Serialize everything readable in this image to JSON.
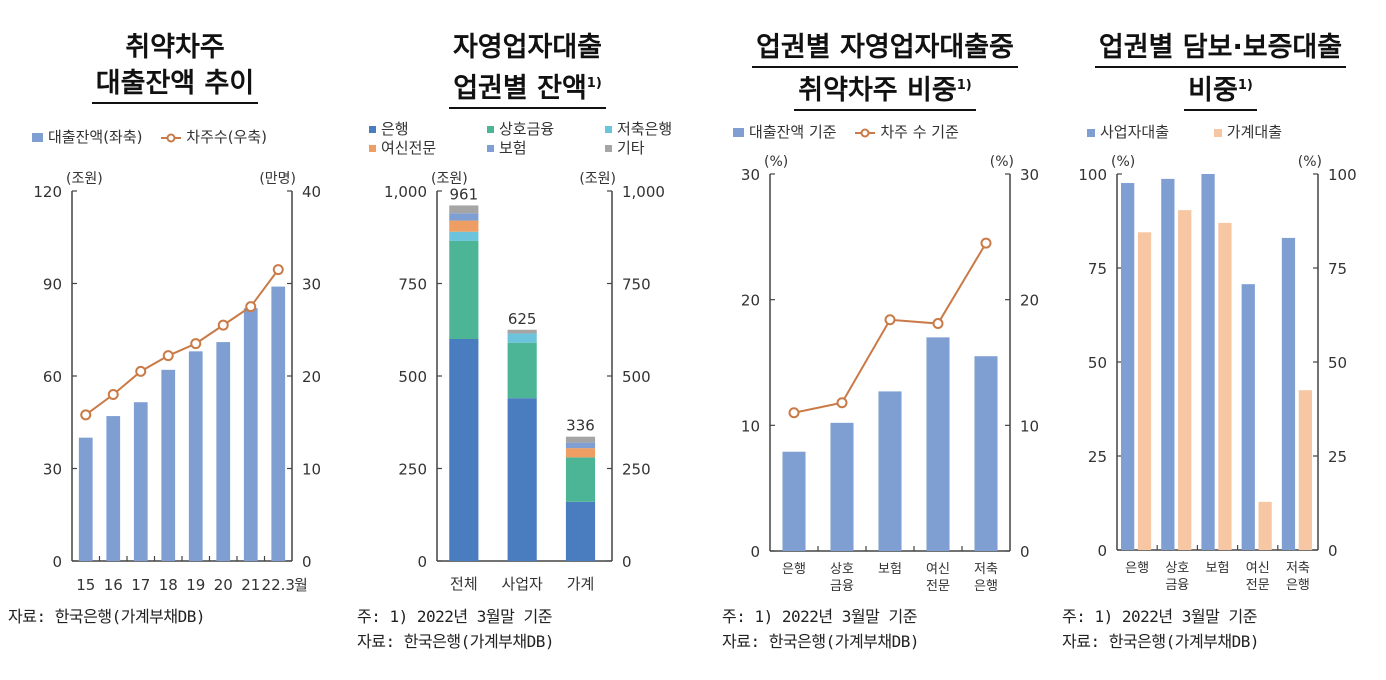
{
  "chart_data": [
    {
      "type": "bar",
      "title": "취약차주 대출잔액 추이",
      "legend": [
        "대출잔액(좌축)",
        "차주수(우축)"
      ],
      "left_unit": "(조원)",
      "right_unit": "(만명)",
      "categories": [
        "15",
        "16",
        "17",
        "18",
        "19",
        "20",
        "21",
        "22.3"
      ],
      "x_suffix": "월",
      "series": [
        {
          "name": "대출잔액(좌축)",
          "type": "bar",
          "axis": "left",
          "values": [
            40,
            47,
            51.5,
            62,
            68,
            71,
            82,
            89
          ]
        },
        {
          "name": "차주수(우축)",
          "type": "line",
          "axis": "right",
          "values": [
            15.8,
            18,
            20.5,
            22.2,
            23.5,
            25.5,
            27.5,
            31.5
          ]
        }
      ],
      "ylim_left": [
        0,
        120
      ],
      "yticks_left": [
        "0",
        "30",
        "60",
        "90",
        "120"
      ],
      "ylim_right": [
        0,
        40
      ],
      "yticks_right": [
        "0",
        "10",
        "20",
        "30",
        "40"
      ],
      "notes": [
        "자료: 한국은행(가계부채DB)"
      ]
    },
    {
      "type": "bar",
      "stacked": true,
      "title_line1": "자영업자대출",
      "title_line2": "업권별 잔액",
      "title_sup": "1)",
      "left_unit": "(조원)",
      "right_unit": "(조원)",
      "categories": [
        "전체",
        "사업자",
        "가계"
      ],
      "totals": [
        "961",
        "625",
        "336"
      ],
      "series": [
        {
          "name": "은행",
          "values": [
            600,
            440,
            160
          ]
        },
        {
          "name": "상호금융",
          "values": [
            265,
            150,
            120
          ]
        },
        {
          "name": "저축은행",
          "values": [
            25,
            25,
            0
          ]
        },
        {
          "name": "여신전문",
          "values": [
            30,
            0,
            25
          ]
        },
        {
          "name": "보험",
          "values": [
            20,
            0,
            15
          ]
        },
        {
          "name": "기타",
          "values": [
            21,
            10,
            16
          ]
        }
      ],
      "ylim": [
        0,
        1000
      ],
      "yticks": [
        "0",
        "250",
        "500",
        "750",
        "1,000"
      ],
      "notes": [
        "주: 1) 2022년 3월말 기준",
        "자료: 한국은행(가계부채DB)"
      ]
    },
    {
      "type": "bar",
      "title_line1": "업권별 자영업자대출중",
      "title_line2": "취약차주 비중",
      "title_sup": "1)",
      "legend": [
        "대출잔액 기준",
        "차주 수 기준"
      ],
      "left_unit": "(%)",
      "right_unit": "(%)",
      "categories": [
        [
          "은행"
        ],
        [
          "상호",
          "금융"
        ],
        [
          "보험"
        ],
        [
          "여신",
          "전문"
        ],
        [
          "저축",
          "은행"
        ]
      ],
      "series": [
        {
          "name": "대출잔액 기준",
          "type": "bar",
          "values": [
            7.9,
            10.2,
            12.7,
            17.0,
            15.5
          ]
        },
        {
          "name": "차주 수 기준",
          "type": "line",
          "values": [
            11.0,
            11.8,
            18.4,
            18.1,
            24.5
          ]
        }
      ],
      "ylim": [
        0,
        30
      ],
      "yticks": [
        "0",
        "10",
        "20",
        "30"
      ],
      "notes": [
        "주: 1) 2022년 3월말 기준",
        "자료: 한국은행(가계부채DB)"
      ]
    },
    {
      "type": "bar",
      "title_line1": "업권별 담보·보증대출",
      "title_line2": "비중",
      "title_sup": "1)",
      "legend": [
        "사업자대출",
        "가계대출"
      ],
      "left_unit": "(%)",
      "right_unit": "(%)",
      "categories": [
        [
          "은행"
        ],
        [
          "상호",
          "금융"
        ],
        [
          "보험"
        ],
        [
          "여신",
          "전문"
        ],
        [
          "저축",
          "은행"
        ]
      ],
      "series": [
        {
          "name": "사업자대출",
          "values": [
            97.6,
            98.7,
            100,
            70.7,
            83
          ]
        },
        {
          "name": "가계대출",
          "values": [
            84.5,
            90.4,
            87,
            12.8,
            42.5
          ]
        }
      ],
      "ylim": [
        0,
        100
      ],
      "yticks": [
        "0",
        "25",
        "50",
        "75",
        "100"
      ],
      "notes": [
        "주: 1) 2022년 3월말 기준",
        "자료: 한국은행(가계부채DB)"
      ]
    }
  ],
  "colors": {
    "bar_blue": "#7f9fd3",
    "line_orange": "#c97a46",
    "bank": "#4a7cc0",
    "mutual": "#4cb596",
    "savings": "#6cc4dc",
    "card": "#ee9d63",
    "insurance": "#7f9fd3",
    "other": "#a5a5a5",
    "household": "#f7c7a3",
    "axis": "#444444"
  }
}
